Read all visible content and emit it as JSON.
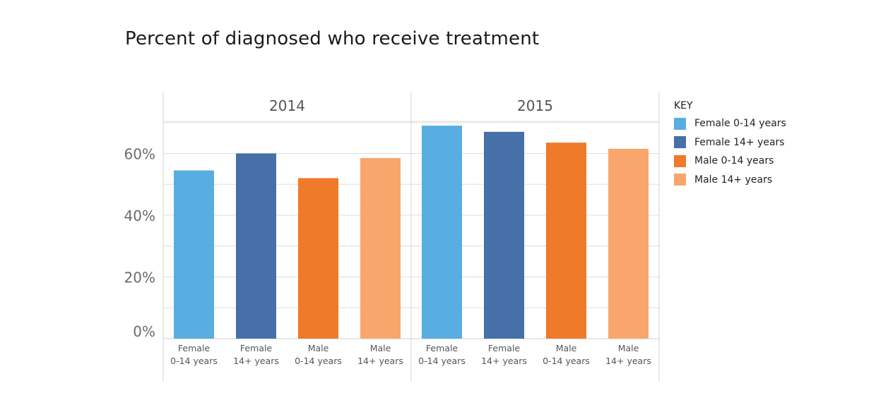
{
  "title": "Percent of diagnosed who receive treatment",
  "legend": {
    "title": "KEY",
    "items": [
      {
        "label": "Female 0-14 years",
        "color": "#58ade1"
      },
      {
        "label": "Female 14+ years",
        "color": "#476fa8"
      },
      {
        "label": "Male 0-14 years",
        "color": "#ee7a2a"
      },
      {
        "label": "Male 14+ years",
        "color": "#f9a66c"
      }
    ]
  },
  "chart_data": {
    "type": "bar",
    "title": "Percent of diagnosed who receive treatment",
    "xlabel": "",
    "ylabel": "",
    "ylim": [
      0,
      80
    ],
    "yticks": [
      "0%",
      "20%",
      "40%",
      "60%"
    ],
    "ytick_values": [
      0,
      20,
      40,
      60
    ],
    "grid": true,
    "legend_position": "right",
    "panels": [
      "2014",
      "2015"
    ],
    "categories": [
      [
        "Female",
        "0-14 years"
      ],
      [
        "Female",
        "14+ years"
      ],
      [
        "Male",
        "0-14 years"
      ],
      [
        "Male",
        "14+ years"
      ]
    ],
    "series": [
      {
        "name": "2014",
        "values": [
          54.5,
          60,
          52,
          58.5
        ]
      },
      {
        "name": "2015",
        "values": [
          69,
          67,
          63.5,
          61.5
        ]
      }
    ]
  }
}
